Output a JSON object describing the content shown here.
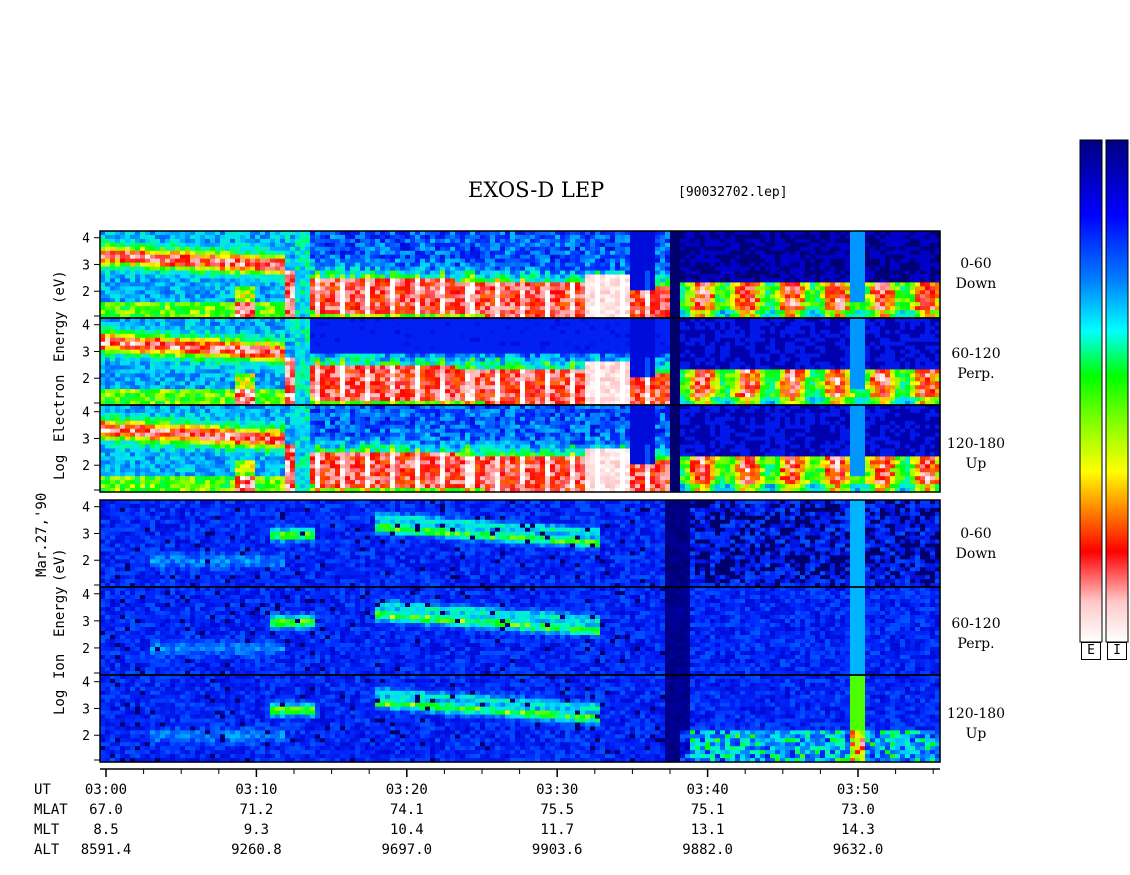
{
  "header": {
    "title": "EXOS-D LEP",
    "file_id": "[90032702.lep]"
  },
  "date_label": "Mar.27,'90",
  "electron_block": {
    "axis_label": "Log Electron Energy (eV)",
    "axis_words": [
      "Log",
      "Electron",
      "Energy",
      "(eV)"
    ]
  },
  "ion_block": {
    "axis_label": "Log Ion Energy (eV)",
    "axis_words": [
      "Log",
      "Ion",
      "Energy",
      "(eV)"
    ]
  },
  "panels": [
    {
      "range": "0-60",
      "dir": "Down"
    },
    {
      "range": "60-120",
      "dir": "Perp."
    },
    {
      "range": "120-180",
      "dir": "Up"
    },
    {
      "range": "0-60",
      "dir": "Down"
    },
    {
      "range": "60-120",
      "dir": "Perp."
    },
    {
      "range": "120-180",
      "dir": "Up"
    }
  ],
  "y_ticks": [
    "4",
    "3",
    "2"
  ],
  "colorbar": {
    "labels": [
      "E",
      "I"
    ],
    "colors": [
      "#ffffff",
      "#ffc8c8",
      "#ff0000",
      "#ff8000",
      "#ffff00",
      "#80ff00",
      "#00ff00",
      "#00ffff",
      "#0080ff",
      "#0000ff",
      "#000080"
    ]
  },
  "time_table": {
    "rows": [
      {
        "label": "UT",
        "values": [
          "03:00",
          "03:10",
          "03:20",
          "03:30",
          "03:40",
          "03:50"
        ]
      },
      {
        "label": "MLAT",
        "values": [
          "67.0",
          "71.2",
          "74.1",
          "75.5",
          "75.1",
          "73.0"
        ]
      },
      {
        "label": "MLT",
        "values": [
          "8.5",
          "9.3",
          "10.4",
          "11.7",
          "13.1",
          "14.3"
        ]
      },
      {
        "label": "ALT",
        "values": [
          "8591.4",
          "9260.8",
          "9697.0",
          "9903.6",
          "9882.0",
          "9632.0"
        ]
      }
    ]
  },
  "chart_data": {
    "type": "heatmap",
    "title": "EXOS-D LEP",
    "xlabel": "UT",
    "ylabel": "Log Energy (eV)",
    "x_ticks": [
      "03:00",
      "03:10",
      "03:20",
      "03:30",
      "03:40",
      "03:50"
    ],
    "xlim": [
      "03:00",
      "03:55"
    ],
    "ylim": [
      1,
      4.2
    ],
    "y_tick_values": [
      2,
      3,
      4
    ],
    "series": [
      {
        "name": "Electron 0-60 Down"
      },
      {
        "name": "Electron 60-120 Perp."
      },
      {
        "name": "Electron 120-180 Up"
      },
      {
        "name": "Ion 0-60 Down"
      },
      {
        "name": "Ion 60-120 Perp."
      },
      {
        "name": "Ion 120-180 Up"
      }
    ]
  }
}
